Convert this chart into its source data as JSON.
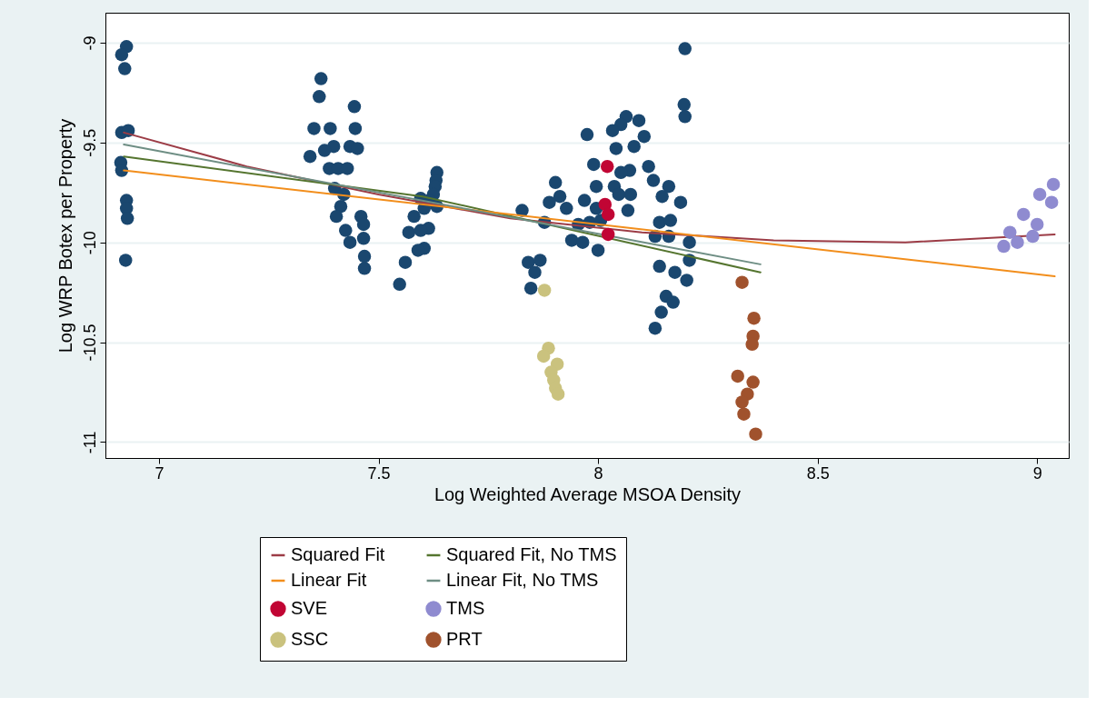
{
  "chart_data": {
    "type": "scatter",
    "xlabel": "Log Weighted Average MSOA Density",
    "ylabel": "Log WRP Botex per Property",
    "xlim": [
      6.878,
      9.072
    ],
    "ylim": [
      -11.08,
      -8.85
    ],
    "xticks": [
      7,
      7.5,
      8,
      8.5,
      9
    ],
    "yticks": [
      -9,
      -9.5,
      -10,
      -10.5,
      -11
    ],
    "grid": "y",
    "legend": "bottom",
    "series": [
      {
        "marker": "circle",
        "color": "#1a476f",
        "x": [
          6.926,
          6.915,
          6.922,
          6.915,
          6.93,
          6.913,
          6.915,
          6.926,
          6.926,
          6.928,
          6.924,
          7.369,
          7.365,
          7.445,
          7.353,
          7.39,
          7.447,
          7.398,
          7.377,
          7.435,
          7.452,
          7.344,
          7.388,
          7.408,
          7.429,
          7.4,
          7.421,
          7.414,
          7.404,
          7.46,
          7.466,
          7.425,
          7.435,
          7.466,
          7.468,
          7.468,
          7.633,
          7.631,
          7.629,
          7.625,
          7.616,
          7.596,
          7.604,
          7.633,
          7.581,
          7.569,
          7.614,
          7.596,
          7.604,
          7.59,
          7.561,
          7.548,
          8.198,
          8.196,
          8.198,
          8.064,
          8.093,
          8.052,
          8.033,
          8.105,
          7.975,
          8.041,
          8.082,
          7.99,
          8.115,
          8.072,
          8.052,
          8.126,
          8.161,
          7.903,
          7.996,
          8.037,
          8.146,
          8.074,
          7.913,
          7.889,
          7.969,
          8.188,
          7.928,
          7.996,
          8.068,
          7.827,
          8.14,
          8.165,
          7.981,
          7.878,
          8.208,
          8.13,
          7.94,
          7.965,
          8.0,
          8.161,
          8.14,
          8.175,
          8.202,
          8.208,
          7.841,
          7.868,
          7.856,
          7.847,
          8.155,
          8.171,
          8.144,
          8.13,
          8.047,
          8.006,
          7.955
        ],
        "values": [
          -9.02,
          -9.06,
          -9.13,
          -9.45,
          -9.44,
          -9.6,
          -9.64,
          -9.79,
          -9.83,
          -9.88,
          -10.09,
          -9.18,
          -9.27,
          -9.32,
          -9.43,
          -9.43,
          -9.43,
          -9.52,
          -9.54,
          -9.52,
          -9.53,
          -9.57,
          -9.63,
          -9.63,
          -9.63,
          -9.73,
          -9.76,
          -9.82,
          -9.87,
          -9.87,
          -9.91,
          -9.94,
          -10.0,
          -9.98,
          -10.07,
          -10.13,
          -9.65,
          -9.69,
          -9.72,
          -9.76,
          -9.79,
          -9.78,
          -9.83,
          -9.82,
          -9.87,
          -9.95,
          -9.93,
          -9.94,
          -10.03,
          -10.04,
          -10.1,
          -10.21,
          -9.03,
          -9.31,
          -9.37,
          -9.37,
          -9.39,
          -9.41,
          -9.44,
          -9.47,
          -9.46,
          -9.53,
          -9.52,
          -9.61,
          -9.62,
          -9.64,
          -9.65,
          -9.69,
          -9.72,
          -9.7,
          -9.72,
          -9.72,
          -9.77,
          -9.76,
          -9.77,
          -9.8,
          -9.79,
          -9.8,
          -9.83,
          -9.83,
          -9.84,
          -9.84,
          -9.9,
          -9.89,
          -9.9,
          -9.9,
          -10.0,
          -9.97,
          -9.99,
          -10.0,
          -10.04,
          -9.97,
          -10.12,
          -10.15,
          -10.19,
          -10.09,
          -10.1,
          -10.09,
          -10.15,
          -10.23,
          -10.27,
          -10.3,
          -10.35,
          -10.43,
          -9.76,
          -9.89,
          -9.91
        ]
      },
      {
        "type": "line",
        "name": "Squared Fit",
        "color": "#9c3c46",
        "x": [
          6.92,
          7.2,
          7.5,
          7.8,
          8.1,
          8.4,
          8.7,
          9.04
        ],
        "values": [
          -9.45,
          -9.62,
          -9.76,
          -9.88,
          -9.95,
          -9.99,
          -10.0,
          -9.96
        ]
      },
      {
        "type": "line",
        "name": "Squared Fit, No TMS",
        "color": "#55752f",
        "x": [
          6.92,
          7.6,
          8.37
        ],
        "values": [
          -9.57,
          -9.77,
          -10.15
        ]
      },
      {
        "type": "line",
        "name": "Linear Fit",
        "color": "#f28e1c",
        "x": [
          6.92,
          9.04
        ],
        "values": [
          -9.64,
          -10.17
        ]
      },
      {
        "type": "line",
        "name": "Linear Fit, No TMS",
        "color": "#6e8e84",
        "x": [
          6.92,
          8.37
        ],
        "values": [
          -9.51,
          -10.11
        ]
      },
      {
        "marker": "circle",
        "name": "SVE",
        "color": "#c10534",
        "x": [
          8.021,
          8.016,
          8.023,
          8.023
        ],
        "values": [
          -9.62,
          -9.81,
          -9.86,
          -9.96
        ]
      },
      {
        "marker": "circle",
        "name": "TMS",
        "color": "#8f8bd0",
        "x": [
          9.037,
          9.006,
          9.033,
          8.969,
          9.0,
          8.938,
          8.99,
          8.955,
          8.924
        ],
        "values": [
          -9.71,
          -9.76,
          -9.8,
          -9.86,
          -9.91,
          -9.95,
          -9.97,
          -10.0,
          -10.02
        ]
      },
      {
        "marker": "circle",
        "name": "SSC",
        "color": "#cac27e",
        "x": [
          7.878,
          7.887,
          7.876,
          7.907,
          7.893,
          7.899,
          7.903,
          7.909
        ],
        "values": [
          -10.24,
          -10.53,
          -10.57,
          -10.61,
          -10.65,
          -10.69,
          -10.73,
          -10.76
        ]
      },
      {
        "marker": "circle",
        "name": "PRT",
        "color": "#a0522d",
        "x": [
          8.328,
          8.355,
          8.353,
          8.351,
          8.318,
          8.353,
          8.34,
          8.328,
          8.332,
          8.359
        ],
        "values": [
          -10.2,
          -10.38,
          -10.47,
          -10.51,
          -10.67,
          -10.7,
          -10.76,
          -10.8,
          -10.86,
          -10.96
        ]
      }
    ]
  }
}
